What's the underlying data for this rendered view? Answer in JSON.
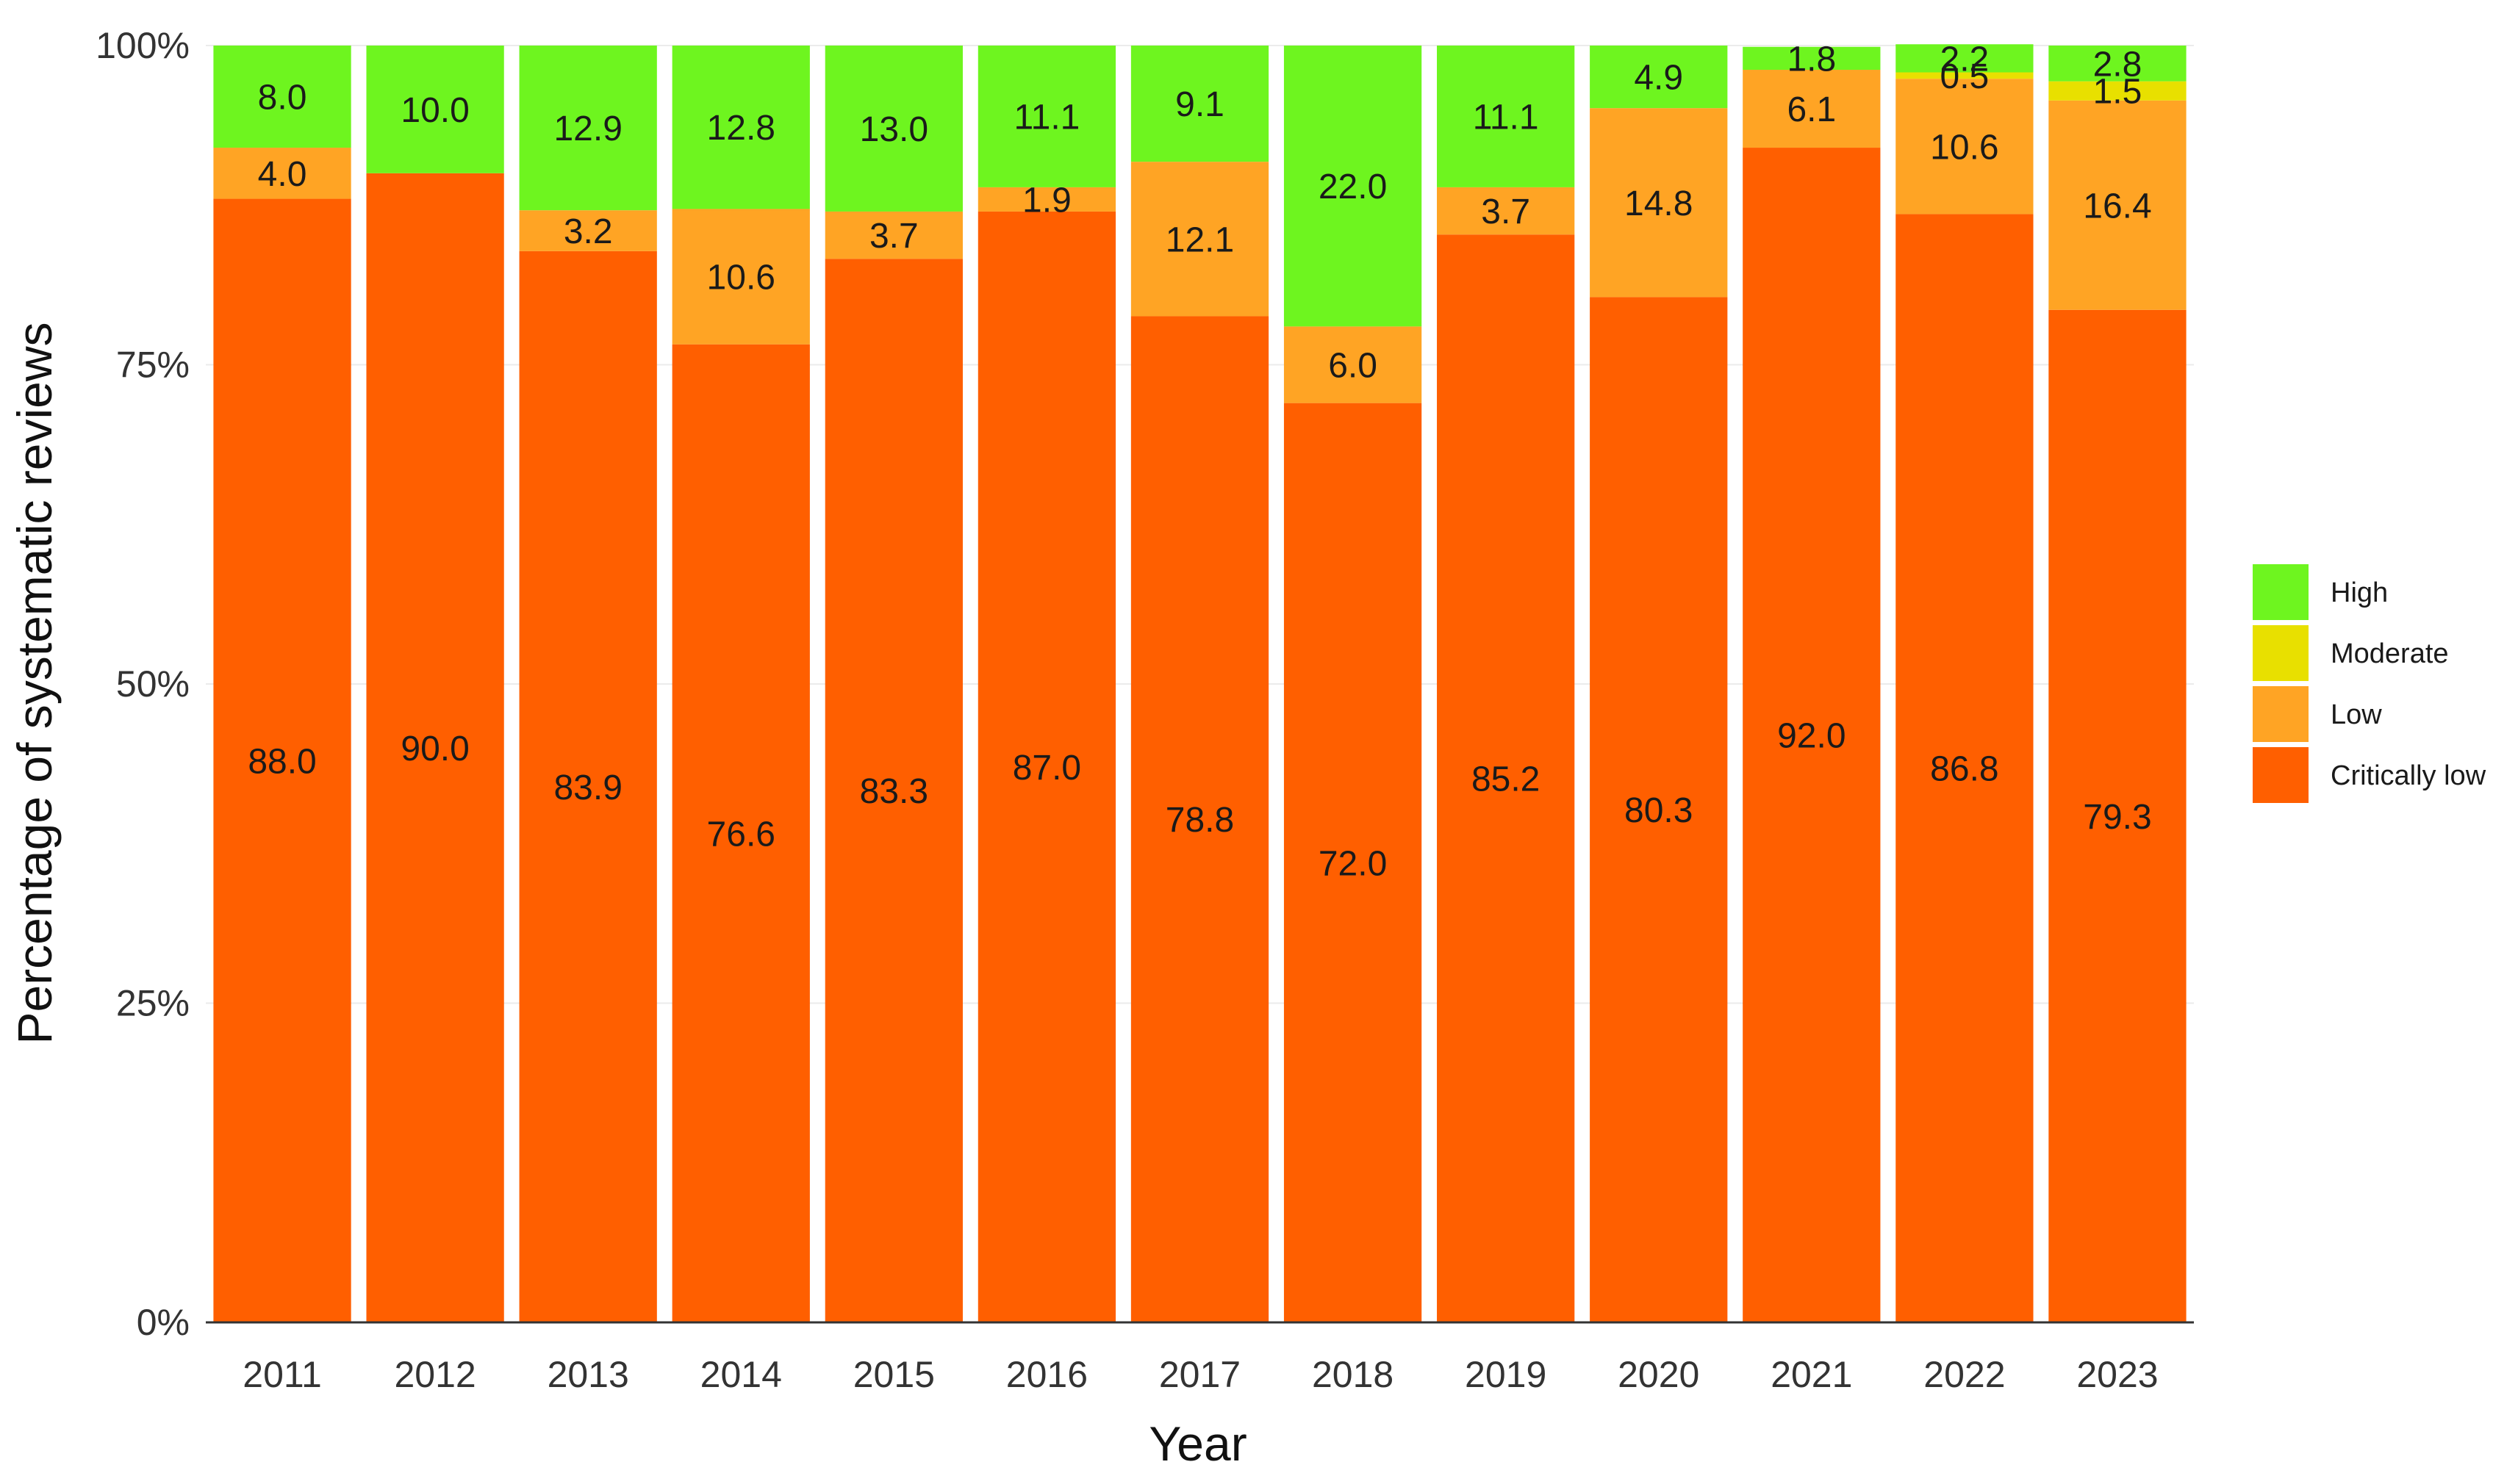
{
  "chart_data": {
    "type": "bar",
    "stacked": true,
    "title": "",
    "xlabel": "Year",
    "ylabel": "Percentage of systematic reviews",
    "ylim": [
      0,
      100
    ],
    "yticks": [
      "0%",
      "25%",
      "50%",
      "75%",
      "100%"
    ],
    "legend_position": "right",
    "categories": [
      "2011",
      "2012",
      "2013",
      "2014",
      "2015",
      "2016",
      "2017",
      "2018",
      "2019",
      "2020",
      "2021",
      "2022",
      "2023"
    ],
    "series": [
      {
        "name": "Critically low",
        "color": "#ff5f00",
        "values": [
          88.0,
          90.0,
          83.9,
          76.6,
          83.3,
          87.0,
          78.8,
          72.0,
          85.2,
          80.3,
          92.0,
          86.8,
          79.3
        ]
      },
      {
        "name": "Low",
        "color": "#ffa424",
        "values": [
          4.0,
          0,
          3.2,
          10.6,
          3.7,
          1.9,
          12.1,
          6.0,
          3.7,
          14.8,
          6.1,
          10.6,
          16.4
        ]
      },
      {
        "name": "Moderate",
        "color": "#e8e000",
        "values": [
          0,
          0,
          0,
          0,
          0,
          0,
          0,
          0,
          0,
          0,
          0,
          0.5,
          1.5
        ]
      },
      {
        "name": "High",
        "color": "#6ef51f",
        "values": [
          8.0,
          10.0,
          12.9,
          12.8,
          13.0,
          11.1,
          9.1,
          22.0,
          11.1,
          4.9,
          1.8,
          2.2,
          2.8
        ]
      }
    ],
    "legend_order": [
      "High",
      "Moderate",
      "Low",
      "Critically low"
    ]
  }
}
